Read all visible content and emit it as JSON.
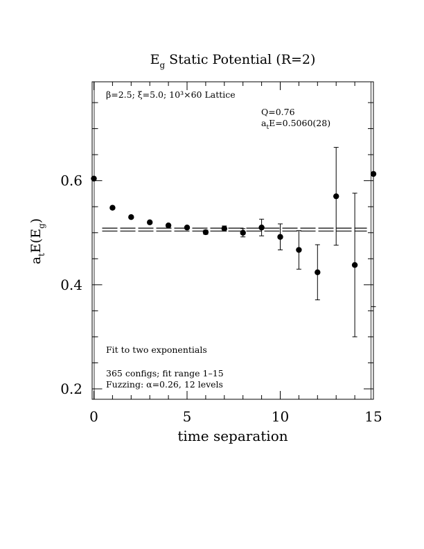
{
  "chart_data": {
    "type": "scatter",
    "title": "E",
    "title_sub": "g",
    "title_rest": " Static Potential (R=2)",
    "xlabel": "time separation",
    "ylabel_pre": "a",
    "ylabel_sub1": "t",
    "ylabel_mid": "E(E",
    "ylabel_sub2": "g",
    "ylabel_post": ")",
    "xlim": [
      0,
      15
    ],
    "ylim": [
      0.18,
      0.79
    ],
    "x_ticks": [
      0,
      5,
      10,
      15
    ],
    "x_tick_labels": [
      "0",
      "5",
      "10",
      "15"
    ],
    "y_ticks": [
      0.2,
      0.4,
      0.6
    ],
    "y_tick_labels": [
      "0.2",
      "0.4",
      "0.6"
    ],
    "grid": false,
    "annotations": {
      "lattice": "β=2.5; ξ=5.0; 10³×60 Lattice",
      "q": "Q=0.76",
      "ate_pre": "a",
      "ate_sub": "t",
      "ate_rest": "E=0.5060(28)",
      "fit": "Fit to two exponentials",
      "configs": "365 configs; fit range 1–15",
      "fuzzing": "Fuzzing: α=0.26, 12 levels"
    },
    "fit": {
      "value": 0.506,
      "error": 0.0028,
      "x_range": [
        0,
        14.5
      ]
    },
    "points": [
      {
        "x": 0,
        "y": 0.604,
        "err": 0.001
      },
      {
        "x": 1,
        "y": 0.548,
        "err": 0.001
      },
      {
        "x": 2,
        "y": 0.53,
        "err": 0.001
      },
      {
        "x": 3,
        "y": 0.52,
        "err": 0.001
      },
      {
        "x": 4,
        "y": 0.514,
        "err": 0.002
      },
      {
        "x": 5,
        "y": 0.51,
        "err": 0.003
      },
      {
        "x": 6,
        "y": 0.501,
        "err": 0.004
      },
      {
        "x": 7,
        "y": 0.508,
        "err": 0.005
      },
      {
        "x": 8,
        "y": 0.5,
        "err": 0.008
      },
      {
        "x": 9,
        "y": 0.51,
        "err": 0.016
      },
      {
        "x": 10,
        "y": 0.492,
        "err": 0.025
      },
      {
        "x": 11,
        "y": 0.467,
        "err": 0.037
      },
      {
        "x": 12,
        "y": 0.424,
        "err": 0.053
      },
      {
        "x": 13,
        "y": 0.57,
        "err": 0.094
      },
      {
        "x": 14,
        "y": 0.438,
        "err": 0.138
      },
      {
        "x": 15,
        "y": 0.613,
        "err": 0.255
      }
    ]
  }
}
